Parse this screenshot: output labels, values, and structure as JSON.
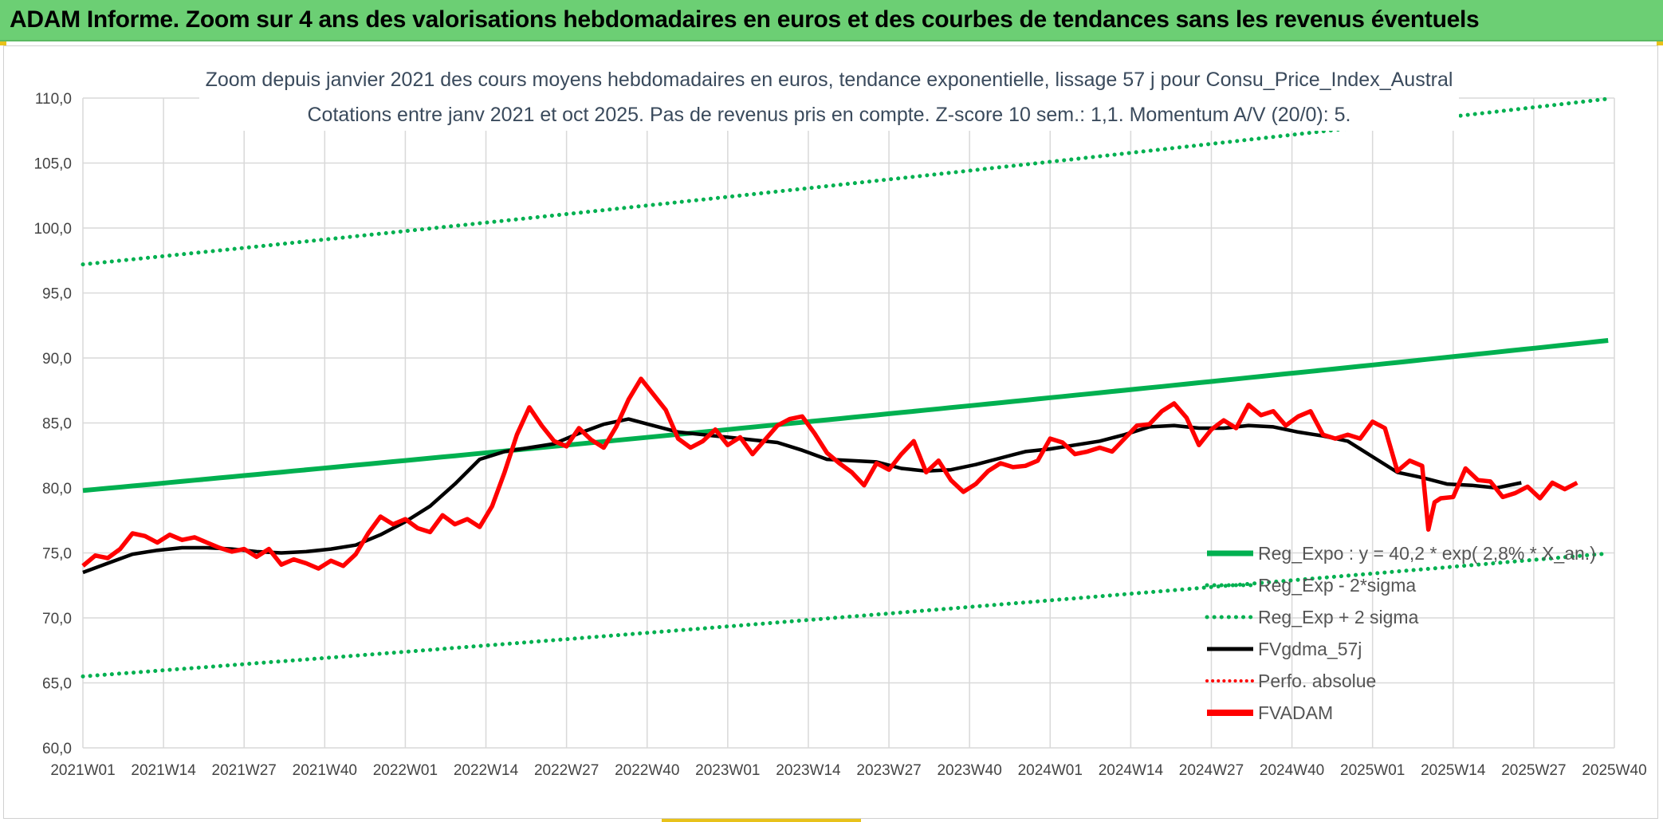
{
  "header": {
    "title": "ADAM Informe. Zoom sur 4 ans des valorisations hebdomadaires en euros et des courbes de tendances sans les revenus éventuels"
  },
  "colors": {
    "banner": "#6ccf74",
    "trend": "#00b050",
    "smooth": "#000000",
    "price": "#ff0000",
    "grid": "#d9d9d9"
  },
  "chart_data": {
    "type": "line",
    "title": "Zoom depuis janvier 2021 des cours moyens hebdomadaires en euros, tendance exponentielle, lissage 57 j pour Consu_Price_Index_Austral",
    "subtitle": "Cotations entre janv 2021 et oct 2025. Pas de revenus pris en compte. Z-score 10 sem.: 1,1. Momentum A/V (20/0): 5.",
    "xlabel": "",
    "ylabel": "",
    "ylim": [
      60,
      110
    ],
    "y_ticks": [
      "60,0",
      "65,0",
      "70,0",
      "75,0",
      "80,0",
      "85,0",
      "90,0",
      "95,0",
      "100,0",
      "105,0",
      "110,0"
    ],
    "x_ticks": [
      "2021W01",
      "2021W14",
      "2021W27",
      "2021W40",
      "2022W01",
      "2022W14",
      "2022W27",
      "2022W40",
      "2023W01",
      "2023W14",
      "2023W27",
      "2023W40",
      "2024W01",
      "2024W14",
      "2024W27",
      "2024W40",
      "2025W01",
      "2025W14",
      "2025W27",
      "2025W40"
    ],
    "legend": [
      {
        "label": "Reg_Expo : y = 40,2 * exp( 2,8% * X_an.)",
        "style": "solid-green"
      },
      {
        "label": "Reg_Exp - 2*sigma",
        "style": "dotted-green"
      },
      {
        "label": "Reg_Exp + 2 sigma",
        "style": "dotted-green"
      },
      {
        "label": "FVgdma_57j",
        "style": "solid-black"
      },
      {
        "label": "Perfo. absolue",
        "style": "dotted-red"
      },
      {
        "label": "FVADAM",
        "style": "solid-red"
      }
    ],
    "series": [
      {
        "name": "Reg_Expo",
        "start": 79.8,
        "end": 91.4
      },
      {
        "name": "Reg_Exp - 2*sigma",
        "start": 65.5,
        "end": 75.0
      },
      {
        "name": "Reg_Exp + 2 sigma",
        "start": 97.2,
        "end": 110.0
      },
      {
        "name": "FVgdma_57j",
        "points": [
          [
            0,
            73.5
          ],
          [
            4,
            74.2
          ],
          [
            8,
            74.9
          ],
          [
            12,
            75.2
          ],
          [
            16,
            75.4
          ],
          [
            20,
            75.4
          ],
          [
            24,
            75.3
          ],
          [
            28,
            75.1
          ],
          [
            32,
            75.0
          ],
          [
            36,
            75.1
          ],
          [
            40,
            75.3
          ],
          [
            44,
            75.6
          ],
          [
            48,
            76.4
          ],
          [
            52,
            77.4
          ],
          [
            56,
            78.6
          ],
          [
            60,
            80.3
          ],
          [
            64,
            82.2
          ],
          [
            68,
            82.8
          ],
          [
            72,
            83.1
          ],
          [
            76,
            83.4
          ],
          [
            80,
            84.2
          ],
          [
            84,
            84.9
          ],
          [
            88,
            85.3
          ],
          [
            92,
            84.8
          ],
          [
            96,
            84.3
          ],
          [
            100,
            84.1
          ],
          [
            104,
            83.9
          ],
          [
            108,
            83.7
          ],
          [
            112,
            83.5
          ],
          [
            116,
            82.9
          ],
          [
            120,
            82.2
          ],
          [
            124,
            82.1
          ],
          [
            128,
            82.0
          ],
          [
            132,
            81.5
          ],
          [
            136,
            81.3
          ],
          [
            140,
            81.4
          ],
          [
            144,
            81.8
          ],
          [
            148,
            82.3
          ],
          [
            152,
            82.8
          ],
          [
            156,
            83.0
          ],
          [
            160,
            83.3
          ],
          [
            164,
            83.6
          ],
          [
            168,
            84.1
          ],
          [
            172,
            84.7
          ],
          [
            176,
            84.8
          ],
          [
            180,
            84.6
          ],
          [
            184,
            84.6
          ],
          [
            188,
            84.8
          ],
          [
            192,
            84.7
          ],
          [
            196,
            84.3
          ],
          [
            200,
            84.0
          ],
          [
            204,
            83.6
          ],
          [
            208,
            82.4
          ],
          [
            212,
            81.2
          ],
          [
            216,
            80.8
          ],
          [
            220,
            80.3
          ],
          [
            224,
            80.2
          ],
          [
            228,
            80.0
          ],
          [
            232,
            80.4
          ]
        ]
      },
      {
        "name": "FVADAM",
        "points": [
          [
            0,
            74.0
          ],
          [
            2,
            74.8
          ],
          [
            4,
            74.6
          ],
          [
            6,
            75.3
          ],
          [
            8,
            76.5
          ],
          [
            10,
            76.3
          ],
          [
            12,
            75.8
          ],
          [
            14,
            76.4
          ],
          [
            16,
            76.0
          ],
          [
            18,
            76.2
          ],
          [
            20,
            75.8
          ],
          [
            22,
            75.4
          ],
          [
            24,
            75.1
          ],
          [
            26,
            75.3
          ],
          [
            28,
            74.7
          ],
          [
            30,
            75.3
          ],
          [
            32,
            74.1
          ],
          [
            34,
            74.5
          ],
          [
            36,
            74.2
          ],
          [
            38,
            73.8
          ],
          [
            40,
            74.4
          ],
          [
            42,
            74.0
          ],
          [
            44,
            74.9
          ],
          [
            46,
            76.5
          ],
          [
            48,
            77.8
          ],
          [
            50,
            77.2
          ],
          [
            52,
            77.6
          ],
          [
            54,
            76.9
          ],
          [
            56,
            76.6
          ],
          [
            58,
            77.9
          ],
          [
            60,
            77.2
          ],
          [
            62,
            77.6
          ],
          [
            64,
            77.0
          ],
          [
            66,
            78.6
          ],
          [
            68,
            81.2
          ],
          [
            70,
            84.1
          ],
          [
            72,
            86.2
          ],
          [
            74,
            84.8
          ],
          [
            76,
            83.6
          ],
          [
            78,
            83.2
          ],
          [
            80,
            84.6
          ],
          [
            82,
            83.7
          ],
          [
            84,
            83.1
          ],
          [
            86,
            84.7
          ],
          [
            88,
            86.8
          ],
          [
            90,
            88.4
          ],
          [
            92,
            87.2
          ],
          [
            94,
            86.0
          ],
          [
            96,
            83.8
          ],
          [
            98,
            83.1
          ],
          [
            100,
            83.6
          ],
          [
            102,
            84.5
          ],
          [
            104,
            83.3
          ],
          [
            106,
            83.9
          ],
          [
            108,
            82.6
          ],
          [
            110,
            83.7
          ],
          [
            112,
            84.8
          ],
          [
            114,
            85.3
          ],
          [
            116,
            85.5
          ],
          [
            118,
            84.2
          ],
          [
            120,
            82.7
          ],
          [
            122,
            81.9
          ],
          [
            124,
            81.2
          ],
          [
            126,
            80.2
          ],
          [
            128,
            81.9
          ],
          [
            130,
            81.4
          ],
          [
            132,
            82.6
          ],
          [
            134,
            83.6
          ],
          [
            136,
            81.2
          ],
          [
            138,
            82.1
          ],
          [
            140,
            80.6
          ],
          [
            142,
            79.7
          ],
          [
            144,
            80.3
          ],
          [
            146,
            81.3
          ],
          [
            148,
            81.9
          ],
          [
            150,
            81.6
          ],
          [
            152,
            81.7
          ],
          [
            154,
            82.1
          ],
          [
            156,
            83.8
          ],
          [
            158,
            83.5
          ],
          [
            160,
            82.6
          ],
          [
            162,
            82.8
          ],
          [
            164,
            83.1
          ],
          [
            166,
            82.8
          ],
          [
            168,
            83.8
          ],
          [
            170,
            84.8
          ],
          [
            172,
            84.9
          ],
          [
            174,
            85.9
          ],
          [
            176,
            86.5
          ],
          [
            178,
            85.4
          ],
          [
            180,
            83.3
          ],
          [
            182,
            84.5
          ],
          [
            184,
            85.2
          ],
          [
            186,
            84.6
          ],
          [
            188,
            86.4
          ],
          [
            190,
            85.6
          ],
          [
            192,
            85.9
          ],
          [
            194,
            84.8
          ],
          [
            196,
            85.5
          ],
          [
            198,
            85.9
          ],
          [
            200,
            84.1
          ],
          [
            202,
            83.8
          ],
          [
            204,
            84.1
          ],
          [
            206,
            83.8
          ],
          [
            208,
            85.1
          ],
          [
            210,
            84.6
          ],
          [
            212,
            81.3
          ],
          [
            214,
            82.1
          ],
          [
            216,
            81.7
          ],
          [
            217,
            76.8
          ],
          [
            218,
            78.9
          ],
          [
            219,
            79.2
          ],
          [
            221,
            79.3
          ],
          [
            223,
            81.5
          ],
          [
            225,
            80.6
          ],
          [
            227,
            80.5
          ],
          [
            229,
            79.3
          ],
          [
            231,
            79.6
          ],
          [
            233,
            80.1
          ],
          [
            235,
            79.2
          ],
          [
            237,
            80.4
          ],
          [
            239,
            79.9
          ],
          [
            241,
            80.4
          ]
        ]
      }
    ]
  }
}
